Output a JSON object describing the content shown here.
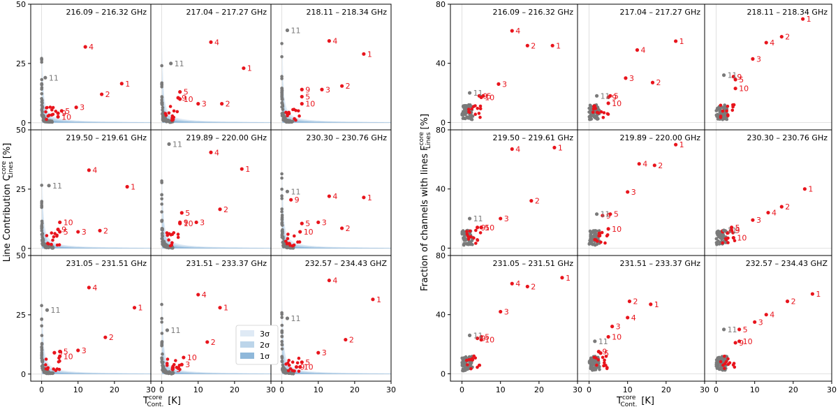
{
  "figure": {
    "left_ylabel": "Line Contribution C",
    "left_ylabel_sup": "core",
    "left_ylabel_sub": "Lines",
    "left_ylabel_unit": "[%]",
    "right_ylabel": "Fraction of channels with lines F",
    "right_ylabel_sup": "core",
    "right_ylabel_sub": "Lines",
    "right_ylabel_unit": "[%]",
    "xlabel": "T",
    "xlabel_sup": "core",
    "xlabel_sub": "Cont.",
    "xlabel_unit": "[K]",
    "legend": [
      "3σ",
      "2σ",
      "1σ"
    ]
  },
  "colors": {
    "detected": "#e8141c",
    "undetected": "#7a7a7a",
    "band1": "#8fb8da",
    "band2": "#bcd5ea",
    "band3": "#dfeaf5"
  },
  "chart_data": [
    {
      "type": "scatter",
      "group": "left",
      "xlim": [
        -3,
        30
      ],
      "ylim": [
        -3,
        50
      ],
      "xticks": [
        0,
        10,
        20,
        30
      ],
      "yticks": [
        0,
        25,
        50
      ],
      "panels": [
        {
          "title": "216.09 – 216.32 GHz",
          "points": [
            {
              "label": "1",
              "x": 22.0,
              "y": 16.5
            },
            {
              "label": "2",
              "x": 16.5,
              "y": 12
            },
            {
              "label": "3",
              "x": 9.5,
              "y": 6.5
            },
            {
              "label": "4",
              "x": 12,
              "y": 32
            },
            {
              "label": "5",
              "x": 5.5,
              "y": 5
            },
            {
              "label": "9",
              "x": 4.5,
              "y": 4
            },
            {
              "label": "10",
              "x": 4.5,
              "y": 2.5
            },
            {
              "label": "11",
              "x": 1,
              "y": 19,
              "detected": false
            }
          ]
        },
        {
          "title": "217.04 – 217.27 GHz",
          "points": [
            {
              "label": "1",
              "x": 22.5,
              "y": 23
            },
            {
              "label": "2",
              "x": 16.5,
              "y": 8
            },
            {
              "label": "3",
              "x": 10,
              "y": 8
            },
            {
              "label": "4",
              "x": 13.5,
              "y": 34
            },
            {
              "label": "5",
              "x": 5,
              "y": 13
            },
            {
              "label": "9",
              "x": 4.5,
              "y": 10.5
            },
            {
              "label": "10",
              "x": 5,
              "y": 10
            },
            {
              "label": "11",
              "x": 2.5,
              "y": 25,
              "detected": false
            }
          ]
        },
        {
          "title": "218.11 – 218.34 GHz",
          "points": [
            {
              "label": "1",
              "x": 22.5,
              "y": 29
            },
            {
              "label": "2",
              "x": 16.5,
              "y": 15.5
            },
            {
              "label": "3",
              "x": 11,
              "y": 14
            },
            {
              "label": "4",
              "x": 13,
              "y": 34.5
            },
            {
              "label": "5",
              "x": 5.5,
              "y": 11
            },
            {
              "label": "9",
              "x": 5.5,
              "y": 14
            },
            {
              "label": "10",
              "x": 5.5,
              "y": 8
            },
            {
              "label": "11",
              "x": 1.5,
              "y": 39,
              "detected": false
            }
          ]
        },
        {
          "title": "219.50 – 219.61 GHz",
          "points": [
            {
              "label": "1",
              "x": 23.5,
              "y": 26
            },
            {
              "label": "2",
              "x": 16,
              "y": 7.5
            },
            {
              "label": "3",
              "x": 10,
              "y": 7
            },
            {
              "label": "4",
              "x": 13,
              "y": 33
            },
            {
              "label": "5",
              "x": 5,
              "y": 7
            },
            {
              "label": "9",
              "x": 4.5,
              "y": 8
            },
            {
              "label": "10",
              "x": 5,
              "y": 11
            },
            {
              "label": "11",
              "x": 2,
              "y": 26.5,
              "detected": false
            }
          ]
        },
        {
          "title": "219.89 – 220.00 GHz",
          "points": [
            {
              "label": "1",
              "x": 22,
              "y": 33.5
            },
            {
              "label": "2",
              "x": 16,
              "y": 16.5
            },
            {
              "label": "3",
              "x": 9.5,
              "y": 11
            },
            {
              "label": "4",
              "x": 13.5,
              "y": 40.5
            },
            {
              "label": "5",
              "x": 5.5,
              "y": 15
            },
            {
              "label": "9",
              "x": 5,
              "y": 11
            },
            {
              "label": "10",
              "x": 5,
              "y": 10.5
            },
            {
              "label": "11",
              "x": 2,
              "y": 44,
              "detected": false
            }
          ]
        },
        {
          "title": "230.30 – 230.76 GHz",
          "points": [
            {
              "label": "1",
              "x": 22.5,
              "y": 21.5
            },
            {
              "label": "2",
              "x": 16.5,
              "y": 8.5
            },
            {
              "label": "3",
              "x": 10,
              "y": 11
            },
            {
              "label": "4",
              "x": 13,
              "y": 22
            },
            {
              "label": "5",
              "x": 5.5,
              "y": 10.5
            },
            {
              "label": "9",
              "x": 2.5,
              "y": 20.5
            },
            {
              "label": "10",
              "x": 5,
              "y": 7
            },
            {
              "label": "11",
              "x": 1.5,
              "y": 24,
              "detected": false
            }
          ]
        }
      ]
    },
    {
      "type": "scatter",
      "group": "left-bottom",
      "xlim": [
        -3,
        30
      ],
      "ylim": [
        -3,
        50
      ],
      "xticks": [
        0,
        10,
        20,
        30
      ],
      "yticks": [
        0,
        25,
        50
      ],
      "panels": [
        {
          "title": "231.05 – 231.51 GHz",
          "points": [
            {
              "label": "1",
              "x": 25.5,
              "y": 28
            },
            {
              "label": "2",
              "x": 17.5,
              "y": 15.5
            },
            {
              "label": "3",
              "x": 10,
              "y": 10
            },
            {
              "label": "4",
              "x": 13,
              "y": 36.5
            },
            {
              "label": "5",
              "x": 5,
              "y": 9.5
            },
            {
              "label": "9",
              "x": 3.5,
              "y": 9
            },
            {
              "label": "10",
              "x": 5,
              "y": 7.5
            },
            {
              "label": "11",
              "x": 1.5,
              "y": 27,
              "detected": false
            }
          ]
        },
        {
          "title": "231.51 – 233.37 GHz",
          "points": [
            {
              "label": "1",
              "x": 16,
              "y": 28
            },
            {
              "label": "2",
              "x": 12.5,
              "y": 13.5
            },
            {
              "label": "3",
              "x": 5.5,
              "y": 4
            },
            {
              "label": "4",
              "x": 10,
              "y": 33.5
            },
            {
              "label": "5",
              "x": 3,
              "y": 2
            },
            {
              "label": "9",
              "x": 3,
              "y": 2
            },
            {
              "label": "10",
              "x": 6,
              "y": 7
            },
            {
              "label": "11",
              "x": 1.5,
              "y": 18.5,
              "detected": false
            }
          ]
        },
        {
          "title": "232.57 – 234.43 GHZ",
          "points": [
            {
              "label": "1",
              "x": 25,
              "y": 31.5
            },
            {
              "label": "2",
              "x": 17.5,
              "y": 14.5
            },
            {
              "label": "3",
              "x": 10,
              "y": 9
            },
            {
              "label": "4",
              "x": 13,
              "y": 39.5
            },
            {
              "label": "5",
              "x": 5.5,
              "y": 5
            },
            {
              "label": "9",
              "x": 4,
              "y": 3
            },
            {
              "label": "10",
              "x": 5,
              "y": 3
            },
            {
              "label": "11",
              "x": 1.5,
              "y": 23.5,
              "detected": false
            }
          ]
        }
      ]
    },
    {
      "type": "scatter",
      "group": "right",
      "xlim": [
        -3,
        30
      ],
      "ylim": [
        -5,
        80
      ],
      "xticks": [
        0,
        10,
        20,
        30
      ],
      "yticks": [
        0,
        40,
        80
      ],
      "panels": [
        {
          "title": "216.09 – 216.32 GHz",
          "points": [
            {
              "label": "1",
              "x": 23.5,
              "y": 52
            },
            {
              "label": "2",
              "x": 17,
              "y": 52
            },
            {
              "label": "3",
              "x": 9.5,
              "y": 26
            },
            {
              "label": "4",
              "x": 13,
              "y": 62
            },
            {
              "label": "5",
              "x": 5.5,
              "y": 18
            },
            {
              "label": "9",
              "x": 4.5,
              "y": 18
            },
            {
              "label": "10",
              "x": 5,
              "y": 17
            },
            {
              "label": "11",
              "x": 2,
              "y": 20,
              "detected": false
            }
          ]
        },
        {
          "title": "217.04 – 217.27 GHz",
          "points": [
            {
              "label": "1",
              "x": 22.5,
              "y": 55
            },
            {
              "label": "2",
              "x": 16.5,
              "y": 27
            },
            {
              "label": "3",
              "x": 9.5,
              "y": 30
            },
            {
              "label": "4",
              "x": 12.5,
              "y": 49
            },
            {
              "label": "5",
              "x": 5.5,
              "y": 18
            },
            {
              "label": "9",
              "x": 5,
              "y": 17
            },
            {
              "label": "10",
              "x": 5,
              "y": 13
            },
            {
              "label": "11",
              "x": 2,
              "y": 18,
              "detected": false
            }
          ]
        },
        {
          "title": "218.11 – 218.34 GHz",
          "points": [
            {
              "label": "1",
              "x": 22.5,
              "y": 70
            },
            {
              "label": "2",
              "x": 17,
              "y": 58
            },
            {
              "label": "3",
              "x": 9.5,
              "y": 43
            },
            {
              "label": "4",
              "x": 13,
              "y": 54
            },
            {
              "label": "5",
              "x": 5,
              "y": 29
            },
            {
              "label": "9",
              "x": 4.5,
              "y": 31
            },
            {
              "label": "10",
              "x": 5,
              "y": 23
            },
            {
              "label": "11",
              "x": 2,
              "y": 32,
              "detected": false
            }
          ]
        },
        {
          "title": "219.50 – 219.61 GHz",
          "points": [
            {
              "label": "1",
              "x": 24,
              "y": 68
            },
            {
              "label": "2",
              "x": 18,
              "y": 32
            },
            {
              "label": "3",
              "x": 10,
              "y": 20
            },
            {
              "label": "4",
              "x": 13,
              "y": 67
            },
            {
              "label": "5",
              "x": 5,
              "y": 14
            },
            {
              "label": "9",
              "x": 4,
              "y": 14
            },
            {
              "label": "10",
              "x": 5,
              "y": 14
            },
            {
              "label": "11",
              "x": 2,
              "y": 20,
              "detected": false
            }
          ]
        },
        {
          "title": "219.89 – 220.00 GHz",
          "points": [
            {
              "label": "1",
              "x": 22.5,
              "y": 70
            },
            {
              "label": "2",
              "x": 17,
              "y": 56
            },
            {
              "label": "3",
              "x": 10,
              "y": 38
            },
            {
              "label": "4",
              "x": 13,
              "y": 57
            },
            {
              "label": "5",
              "x": 5.5,
              "y": 23
            },
            {
              "label": "9",
              "x": 3.5,
              "y": 22
            },
            {
              "label": "10",
              "x": 5,
              "y": 13
            },
            {
              "label": "11",
              "x": 2,
              "y": 23,
              "detected": false
            }
          ]
        },
        {
          "title": "230.30 – 230.76 GHz",
          "points": [
            {
              "label": "1",
              "x": 23,
              "y": 40
            },
            {
              "label": "2",
              "x": 17,
              "y": 28
            },
            {
              "label": "3",
              "x": 9.5,
              "y": 19
            },
            {
              "label": "4",
              "x": 13.5,
              "y": 24
            },
            {
              "label": "5",
              "x": 4,
              "y": 14
            },
            {
              "label": "9",
              "x": 4,
              "y": 12
            },
            {
              "label": "10",
              "x": 4.5,
              "y": 7
            },
            {
              "label": "11",
              "x": 2,
              "y": 12,
              "detected": false
            }
          ]
        },
        {
          "title": "231.05 – 231.51 GHz",
          "points": [
            {
              "label": "1",
              "x": 26,
              "y": 65
            },
            {
              "label": "2",
              "x": 17,
              "y": 59
            },
            {
              "label": "3",
              "x": 10,
              "y": 42
            },
            {
              "label": "4",
              "x": 13,
              "y": 61
            },
            {
              "label": "5",
              "x": 5,
              "y": 25
            },
            {
              "label": "9",
              "x": 4,
              "y": 24
            },
            {
              "label": "10",
              "x": 5,
              "y": 23
            },
            {
              "label": "11",
              "x": 2,
              "y": 26,
              "detected": false
            }
          ]
        },
        {
          "title": "231.51 – 233.37 GHz",
          "points": [
            {
              "label": "1",
              "x": 16,
              "y": 47
            },
            {
              "label": "2",
              "x": 10.5,
              "y": 49
            },
            {
              "label": "3",
              "x": 6,
              "y": 32
            },
            {
              "label": "4",
              "x": 10,
              "y": 38
            },
            {
              "label": "5",
              "x": 3,
              "y": 14
            },
            {
              "label": "9",
              "x": 2.5,
              "y": 15
            },
            {
              "label": "10",
              "x": 5,
              "y": 25
            },
            {
              "label": "11",
              "x": 1.5,
              "y": 22,
              "detected": false
            }
          ]
        },
        {
          "title": "232.57 – 234.43 GHZ",
          "points": [
            {
              "label": "1",
              "x": 25,
              "y": 54
            },
            {
              "label": "2",
              "x": 18.5,
              "y": 49
            },
            {
              "label": "3",
              "x": 10,
              "y": 35
            },
            {
              "label": "4",
              "x": 13,
              "y": 40
            },
            {
              "label": "5",
              "x": 6,
              "y": 30
            },
            {
              "label": "9",
              "x": 5,
              "y": 21
            },
            {
              "label": "10",
              "x": 6,
              "y": 22
            },
            {
              "label": "11",
              "x": 2,
              "y": 30,
              "detected": false
            }
          ]
        }
      ]
    }
  ]
}
